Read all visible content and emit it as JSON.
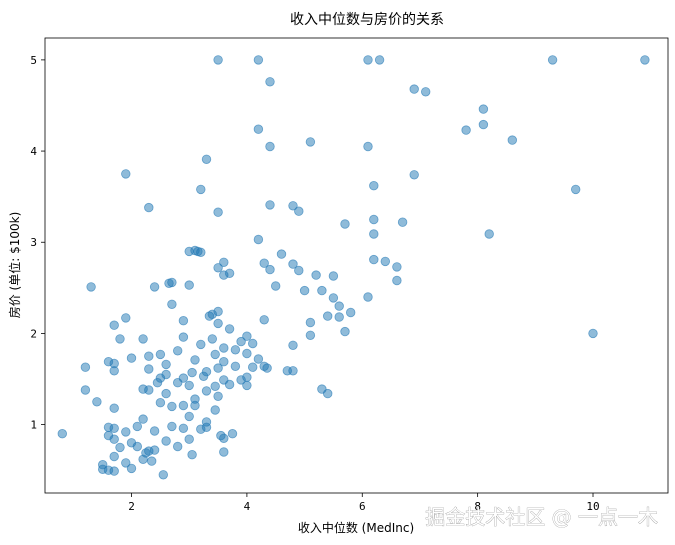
{
  "chart_data": {
    "type": "scatter",
    "title": "收入中位数与房价的关系",
    "xlabel": "收入中位数 (MedInc)",
    "ylabel": "房价 (单位: $100k)",
    "xlim": [
      0.5,
      11.3
    ],
    "ylim": [
      0.25,
      5.24
    ],
    "xticks": [
      2,
      4,
      6,
      8,
      10
    ],
    "yticks": [
      1,
      2,
      3,
      4,
      5
    ],
    "xtick_labels": [
      "2",
      "4",
      "6",
      "8",
      "10"
    ],
    "ytick_labels": [
      "1",
      "2",
      "3",
      "4",
      "5"
    ],
    "grid": false,
    "marker_color": "#1f77b4",
    "marker_alpha": 0.5,
    "points": [
      [
        3.5,
        5.0
      ],
      [
        4.2,
        5.0
      ],
      [
        6.1,
        5.0
      ],
      [
        6.3,
        5.0
      ],
      [
        9.3,
        5.0
      ],
      [
        10.9,
        5.0
      ],
      [
        4.4,
        4.76
      ],
      [
        6.9,
        4.68
      ],
      [
        7.1,
        4.65
      ],
      [
        8.1,
        4.46
      ],
      [
        8.1,
        4.29
      ],
      [
        7.8,
        4.23
      ],
      [
        8.6,
        4.12
      ],
      [
        4.2,
        4.24
      ],
      [
        5.1,
        4.1
      ],
      [
        4.4,
        4.05
      ],
      [
        6.1,
        4.05
      ],
      [
        3.3,
        3.91
      ],
      [
        1.9,
        3.75
      ],
      [
        6.9,
        3.74
      ],
      [
        6.2,
        3.62
      ],
      [
        9.7,
        3.58
      ],
      [
        3.2,
        3.58
      ],
      [
        2.3,
        3.38
      ],
      [
        4.8,
        3.4
      ],
      [
        4.4,
        3.41
      ],
      [
        4.9,
        3.34
      ],
      [
        3.5,
        3.33
      ],
      [
        6.2,
        3.25
      ],
      [
        6.7,
        3.22
      ],
      [
        5.7,
        3.2
      ],
      [
        8.2,
        3.09
      ],
      [
        6.2,
        3.09
      ],
      [
        4.2,
        3.03
      ],
      [
        3.0,
        2.9
      ],
      [
        3.1,
        2.91
      ],
      [
        3.15,
        2.9
      ],
      [
        3.2,
        2.89
      ],
      [
        4.6,
        2.87
      ],
      [
        6.2,
        2.81
      ],
      [
        6.4,
        2.79
      ],
      [
        4.8,
        2.76
      ],
      [
        4.3,
        2.77
      ],
      [
        3.6,
        2.78
      ],
      [
        3.5,
        2.72
      ],
      [
        6.6,
        2.73
      ],
      [
        4.4,
        2.7
      ],
      [
        3.7,
        2.66
      ],
      [
        3.6,
        2.64
      ],
      [
        4.9,
        2.69
      ],
      [
        5.2,
        2.64
      ],
      [
        5.5,
        2.63
      ],
      [
        6.6,
        2.58
      ],
      [
        2.7,
        2.56
      ],
      [
        2.65,
        2.55
      ],
      [
        3.0,
        2.53
      ],
      [
        2.4,
        2.51
      ],
      [
        4.5,
        2.52
      ],
      [
        1.3,
        2.51
      ],
      [
        5.0,
        2.47
      ],
      [
        5.3,
        2.47
      ],
      [
        6.1,
        2.4
      ],
      [
        5.5,
        2.39
      ],
      [
        2.7,
        2.32
      ],
      [
        5.6,
        2.3
      ],
      [
        5.8,
        2.23
      ],
      [
        3.5,
        2.24
      ],
      [
        3.4,
        2.21
      ],
      [
        3.35,
        2.19
      ],
      [
        5.4,
        2.19
      ],
      [
        5.6,
        2.18
      ],
      [
        1.9,
        2.17
      ],
      [
        4.3,
        2.15
      ],
      [
        2.9,
        2.14
      ],
      [
        3.5,
        2.11
      ],
      [
        5.1,
        2.12
      ],
      [
        1.7,
        2.09
      ],
      [
        3.7,
        2.05
      ],
      [
        10.0,
        2.0
      ],
      [
        5.7,
        2.02
      ],
      [
        5.1,
        1.98
      ],
      [
        4.0,
        1.97
      ],
      [
        2.9,
        1.96
      ],
      [
        3.4,
        1.94
      ],
      [
        1.8,
        1.94
      ],
      [
        2.2,
        1.94
      ],
      [
        3.9,
        1.91
      ],
      [
        4.1,
        1.89
      ],
      [
        3.2,
        1.88
      ],
      [
        4.8,
        1.87
      ],
      [
        3.6,
        1.84
      ],
      [
        3.8,
        1.82
      ],
      [
        2.8,
        1.81
      ],
      [
        4.0,
        1.78
      ],
      [
        2.5,
        1.77
      ],
      [
        3.45,
        1.77
      ],
      [
        2.3,
        1.75
      ],
      [
        2.0,
        1.73
      ],
      [
        4.2,
        1.72
      ],
      [
        3.1,
        1.71
      ],
      [
        1.6,
        1.69
      ],
      [
        3.6,
        1.69
      ],
      [
        1.7,
        1.67
      ],
      [
        2.6,
        1.66
      ],
      [
        3.8,
        1.64
      ],
      [
        4.3,
        1.64
      ],
      [
        4.1,
        1.63
      ],
      [
        4.35,
        1.62
      ],
      [
        1.2,
        1.63
      ],
      [
        3.5,
        1.62
      ],
      [
        2.3,
        1.61
      ],
      [
        4.8,
        1.59
      ],
      [
        4.7,
        1.59
      ],
      [
        3.3,
        1.58
      ],
      [
        1.7,
        1.59
      ],
      [
        3.05,
        1.57
      ],
      [
        2.6,
        1.55
      ],
      [
        3.25,
        1.53
      ],
      [
        2.5,
        1.51
      ],
      [
        4.0,
        1.52
      ],
      [
        2.9,
        1.51
      ],
      [
        3.9,
        1.49
      ],
      [
        3.6,
        1.49
      ],
      [
        2.45,
        1.46
      ],
      [
        2.8,
        1.46
      ],
      [
        3.7,
        1.44
      ],
      [
        4.0,
        1.43
      ],
      [
        3.0,
        1.43
      ],
      [
        3.45,
        1.42
      ],
      [
        2.2,
        1.39
      ],
      [
        5.3,
        1.39
      ],
      [
        2.3,
        1.38
      ],
      [
        3.3,
        1.37
      ],
      [
        1.2,
        1.38
      ],
      [
        5.4,
        1.34
      ],
      [
        2.6,
        1.34
      ],
      [
        3.5,
        1.31
      ],
      [
        3.1,
        1.28
      ],
      [
        1.4,
        1.25
      ],
      [
        2.5,
        1.24
      ],
      [
        2.9,
        1.21
      ],
      [
        2.7,
        1.2
      ],
      [
        3.1,
        1.21
      ],
      [
        1.7,
        1.18
      ],
      [
        3.45,
        1.16
      ],
      [
        2.2,
        1.06
      ],
      [
        3.0,
        1.09
      ],
      [
        3.3,
        1.03
      ],
      [
        2.1,
        0.98
      ],
      [
        2.7,
        0.98
      ],
      [
        3.3,
        0.97
      ],
      [
        1.6,
        0.97
      ],
      [
        3.75,
        0.9
      ],
      [
        0.8,
        0.9
      ],
      [
        1.7,
        0.96
      ],
      [
        2.9,
        0.96
      ],
      [
        3.2,
        0.95
      ],
      [
        2.4,
        0.93
      ],
      [
        1.9,
        0.92
      ],
      [
        3.55,
        0.88
      ],
      [
        1.6,
        0.88
      ],
      [
        3.6,
        0.85
      ],
      [
        3.0,
        0.84
      ],
      [
        2.6,
        0.82
      ],
      [
        2.0,
        0.8
      ],
      [
        1.7,
        0.84
      ],
      [
        2.1,
        0.76
      ],
      [
        2.8,
        0.76
      ],
      [
        1.8,
        0.75
      ],
      [
        2.4,
        0.72
      ],
      [
        2.3,
        0.71
      ],
      [
        2.25,
        0.69
      ],
      [
        3.05,
        0.67
      ],
      [
        3.6,
        0.7
      ],
      [
        1.7,
        0.65
      ],
      [
        2.2,
        0.62
      ],
      [
        2.35,
        0.6
      ],
      [
        1.9,
        0.58
      ],
      [
        1.5,
        0.56
      ],
      [
        2.0,
        0.52
      ],
      [
        1.6,
        0.5
      ],
      [
        1.5,
        0.51
      ],
      [
        1.7,
        0.49
      ],
      [
        2.55,
        0.45
      ]
    ]
  },
  "watermark": "掘金技术社区 @ 一点一木"
}
